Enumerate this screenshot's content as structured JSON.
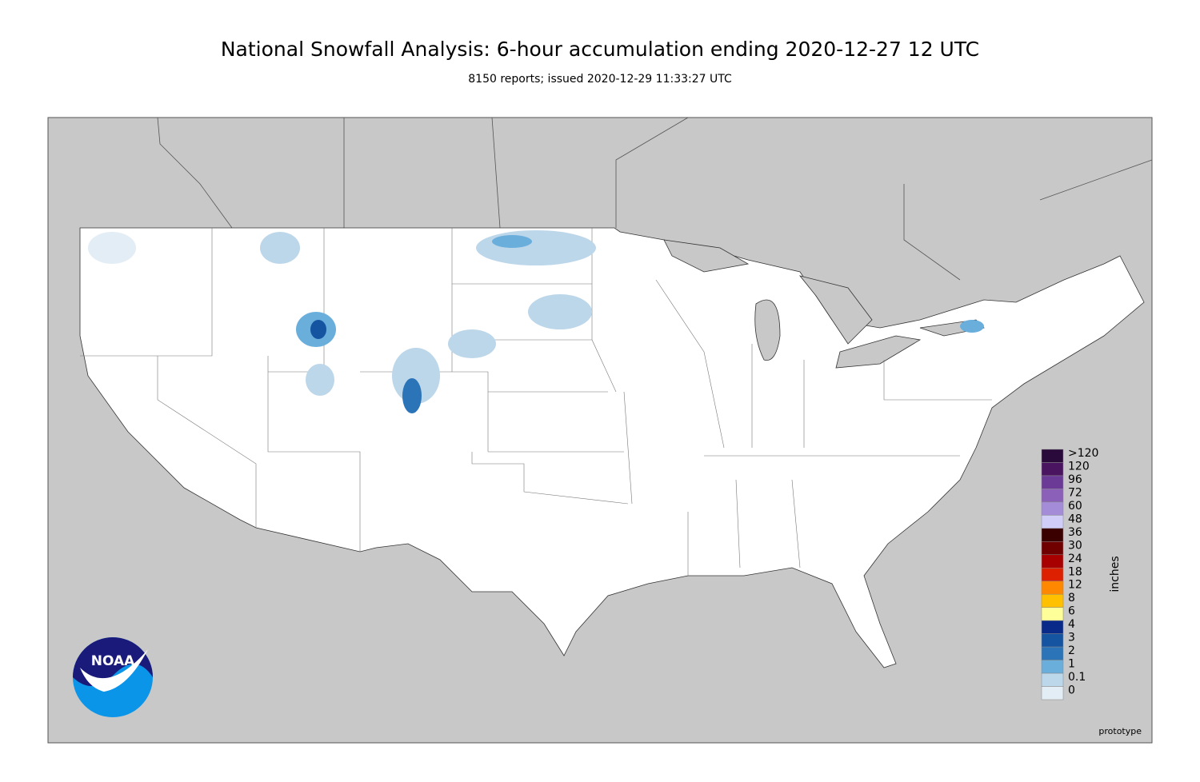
{
  "header": {
    "title": "National Snowfall Analysis: 6-hour accumulation ending 2020-12-27 12 UTC",
    "subtitle": "8150 reports; issued 2020-12-29 11:33:27 UTC"
  },
  "legend": {
    "title": "inches",
    "items": [
      {
        "label": ">120",
        "color": "#2a0a3a"
      },
      {
        "label": "120",
        "color": "#4a1460"
      },
      {
        "label": "96",
        "color": "#6b3a96"
      },
      {
        "label": "72",
        "color": "#8a60b8"
      },
      {
        "label": "60",
        "color": "#a48cd8"
      },
      {
        "label": "48",
        "color": "#d0cdf8"
      },
      {
        "label": "36",
        "color": "#3a0000"
      },
      {
        "label": "30",
        "color": "#700000"
      },
      {
        "label": "24",
        "color": "#a80000"
      },
      {
        "label": "18",
        "color": "#dc2000"
      },
      {
        "label": "12",
        "color": "#ff8800"
      },
      {
        "label": "8",
        "color": "#ffc000"
      },
      {
        "label": "6",
        "color": "#ffff99"
      },
      {
        "label": "4",
        "color": "#0a2a8a"
      },
      {
        "label": "3",
        "color": "#1554a0"
      },
      {
        "label": "2",
        "color": "#2b74b8"
      },
      {
        "label": "1",
        "color": "#6aaedc"
      },
      {
        "label": "0.1",
        "color": "#bcd6ea"
      },
      {
        "label": "0",
        "color": "#e2edf5"
      }
    ]
  },
  "logo": {
    "text": "NOAA"
  },
  "footer": {
    "note": "prototype"
  }
}
